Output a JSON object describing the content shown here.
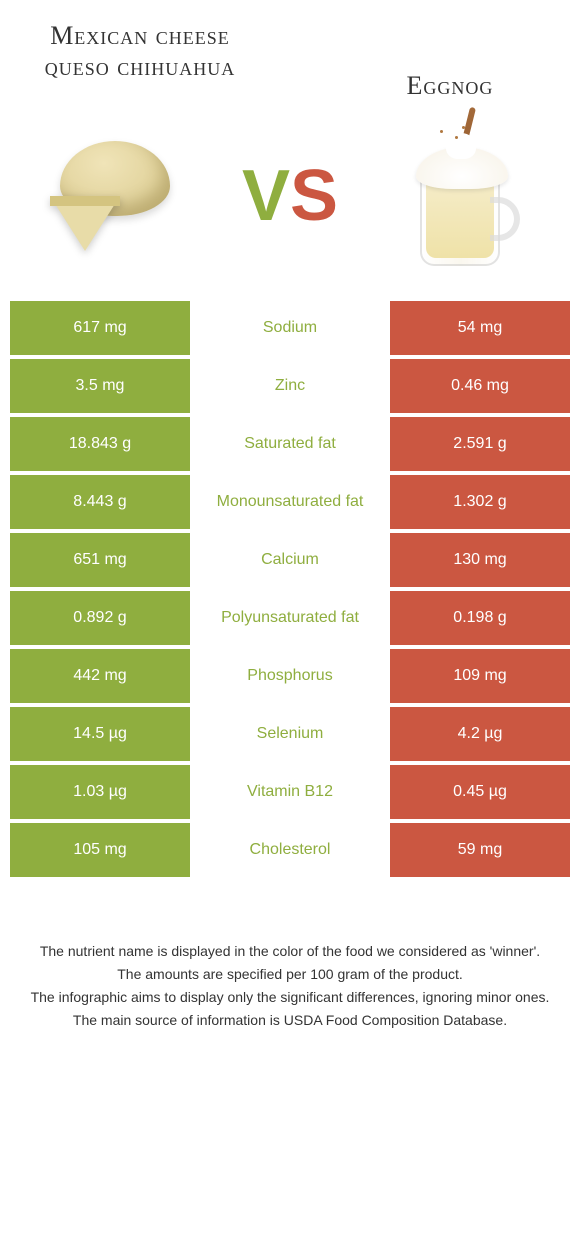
{
  "header": {
    "left_title": "Mexican cheese queso chihuahua",
    "right_title": "Eggnog",
    "vs_v": "V",
    "vs_s": "S"
  },
  "colors": {
    "left_bg": "#8fae3f",
    "right_bg": "#cb5741",
    "left_color": "#8fae3f",
    "right_color": "#cb5741",
    "vs_v_color": "#8fae3f",
    "vs_s_color": "#cb5741"
  },
  "rows": [
    {
      "left": "617 mg",
      "label": "Sodium",
      "right": "54 mg",
      "winner": "left"
    },
    {
      "left": "3.5 mg",
      "label": "Zinc",
      "right": "0.46 mg",
      "winner": "left"
    },
    {
      "left": "18.843 g",
      "label": "Saturated fat",
      "right": "2.591 g",
      "winner": "left"
    },
    {
      "left": "8.443 g",
      "label": "Monounsaturated fat",
      "right": "1.302 g",
      "winner": "left"
    },
    {
      "left": "651 mg",
      "label": "Calcium",
      "right": "130 mg",
      "winner": "left"
    },
    {
      "left": "0.892 g",
      "label": "Polyunsaturated fat",
      "right": "0.198 g",
      "winner": "left"
    },
    {
      "left": "442 mg",
      "label": "Phosphorus",
      "right": "109 mg",
      "winner": "left"
    },
    {
      "left": "14.5 µg",
      "label": "Selenium",
      "right": "4.2 µg",
      "winner": "left"
    },
    {
      "left": "1.03 µg",
      "label": "Vitamin B12",
      "right": "0.45 µg",
      "winner": "left"
    },
    {
      "left": "105 mg",
      "label": "Cholesterol",
      "right": "59 mg",
      "winner": "left"
    }
  ],
  "footer": {
    "line1": "The nutrient name is displayed in the color of the food we considered as 'winner'.",
    "line2": "The amounts are specified per 100 gram of the product.",
    "line3": "The infographic aims to display only the significant differences, ignoring minor ones.",
    "line4": "The main source of information is USDA Food Composition Database."
  }
}
